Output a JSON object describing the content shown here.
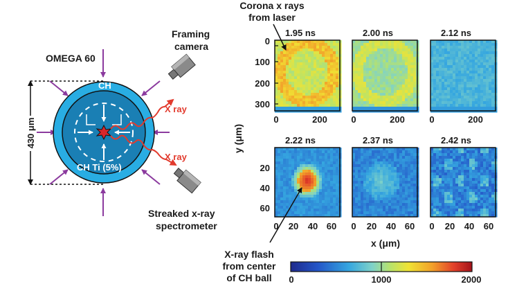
{
  "schematic": {
    "laser_label": "OMEGA 60",
    "outer_shell_label": "CH",
    "inner_label": "CH Ti (5%)",
    "size_label": "430 μm",
    "xray_label_top": "X ray",
    "xray_label_bottom": "X ray",
    "camera_top_label_line1": "Framing",
    "camera_top_label_line2": "camera",
    "camera_bottom_label_line1": "Streaked x-ray",
    "camera_bottom_label_line2": "spectrometer",
    "colors": {
      "shell_outer": "#29ade3",
      "shell_inner": "#1a7fb4",
      "laser_arrows": "#8b3a9e",
      "xray_arrows": "#e23b2e",
      "core": "#d9262b"
    }
  },
  "annotations": {
    "corona_line1": "Corona x rays",
    "corona_line2": "from laser",
    "flash_line1": "X-ray flash",
    "flash_line2": "from center",
    "flash_line3": "of CH ball"
  },
  "axes": {
    "y_label": "y (μm)",
    "x_label": "x (μm)"
  },
  "top_row": {
    "y_ticks": [
      "0",
      "100",
      "200",
      "300"
    ],
    "x_ticks": [
      "0",
      "200"
    ]
  },
  "bottom_row": {
    "y_ticks": [
      "20",
      "40",
      "60"
    ],
    "x_ticks": [
      "0",
      "20",
      "40",
      "60"
    ]
  },
  "frames": [
    {
      "time": "1.95 ns",
      "pattern": "corona"
    },
    {
      "time": "2.00 ns",
      "pattern": "corona_faint"
    },
    {
      "time": "2.12 ns",
      "pattern": "uniform"
    },
    {
      "time": "2.22 ns",
      "pattern": "flash"
    },
    {
      "time": "2.37 ns",
      "pattern": "diffuse"
    },
    {
      "time": "2.42 ns",
      "pattern": "patchy"
    }
  ],
  "colorbar": {
    "ticks": [
      "0",
      "1000",
      "2000"
    ],
    "min": 0,
    "max": 2000
  }
}
